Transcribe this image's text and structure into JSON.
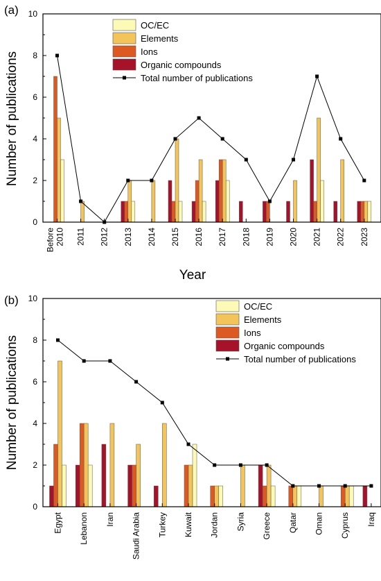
{
  "colors": {
    "OC/EC": "#fdf9b6",
    "Elements": "#f2c45a",
    "Ions": "#dc5a22",
    "Organic compounds": "#a5122a",
    "total_line": "#000000"
  },
  "chart_data": [
    {
      "type": "bar",
      "panel_label": "(a)",
      "xlabel": "Year",
      "ylabel": "Number of publications",
      "ylim": [
        0,
        10
      ],
      "yticks": [
        0,
        2,
        4,
        6,
        8,
        10
      ],
      "grid": false,
      "legend_position": "top-right",
      "categories": [
        "Before 2010",
        "2011",
        "2012",
        "2013",
        "2014",
        "2015",
        "2016",
        "2017",
        "2018",
        "2019",
        "2020",
        "2021",
        "2022",
        "2023"
      ],
      "series": [
        {
          "name": "OC/EC",
          "values": [
            3,
            0,
            0,
            1,
            0,
            1,
            1,
            2,
            0,
            0,
            0,
            2,
            0,
            1
          ]
        },
        {
          "name": "Elements",
          "values": [
            5,
            1,
            0,
            2,
            2,
            4,
            3,
            3,
            0,
            0,
            2,
            5,
            3,
            1
          ]
        },
        {
          "name": "Ions",
          "values": [
            7,
            0,
            0,
            1,
            0,
            1,
            2,
            3,
            0,
            1,
            0,
            1,
            0,
            1
          ]
        },
        {
          "name": "Organic compounds",
          "values": [
            0,
            0,
            0,
            1,
            0,
            2,
            1,
            2,
            1,
            1,
            1,
            3,
            1,
            1
          ]
        }
      ],
      "line": {
        "name": "Total number of publications",
        "values": [
          8,
          1,
          0,
          2,
          2,
          4,
          5,
          4,
          3,
          1,
          3,
          7,
          4,
          2
        ]
      }
    },
    {
      "type": "bar",
      "panel_label": "(b)",
      "xlabel": "",
      "ylabel": "Number of publications",
      "ylim": [
        0,
        10
      ],
      "yticks": [
        0,
        2,
        4,
        6,
        8,
        10
      ],
      "grid": false,
      "legend_position": "top-right",
      "categories": [
        "Egypt",
        "Lebanon",
        "Iran",
        "Saudi Arabia",
        "Turkey",
        "Kuwait",
        "Jordan",
        "Syria",
        "Greece",
        "Qatar",
        "Oman",
        "Cyprus",
        "Iraq"
      ],
      "series": [
        {
          "name": "OC/EC",
          "values": [
            2,
            2,
            0,
            0,
            0,
            3,
            1,
            0,
            1,
            1,
            0,
            1,
            0
          ]
        },
        {
          "name": "Elements",
          "values": [
            7,
            4,
            4,
            3,
            4,
            2,
            1,
            2,
            2,
            1,
            1,
            1,
            0
          ]
        },
        {
          "name": "Ions",
          "values": [
            3,
            4,
            0,
            2,
            0,
            2,
            1,
            0,
            1,
            1,
            0,
            1,
            0
          ]
        },
        {
          "name": "Organic compounds",
          "values": [
            1,
            2,
            3,
            2,
            1,
            0,
            0,
            0,
            2,
            0,
            0,
            0,
            1
          ]
        }
      ],
      "line": {
        "name": "Total number of publications",
        "values": [
          8,
          7,
          7,
          6,
          5,
          3,
          2,
          2,
          2,
          1,
          1,
          1,
          1
        ]
      }
    }
  ]
}
